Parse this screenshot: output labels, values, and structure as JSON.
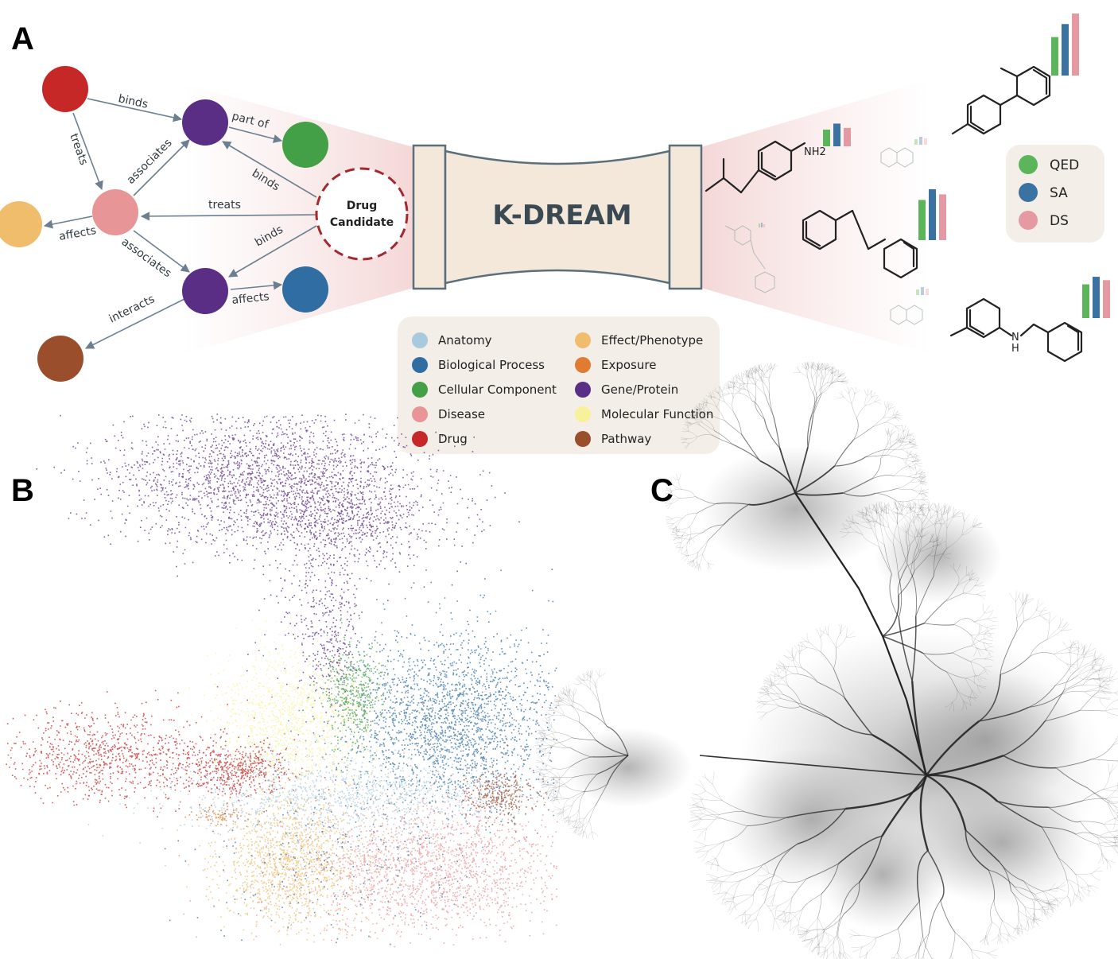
{
  "panels": {
    "a": "A",
    "b": "B",
    "c": "C"
  },
  "colors": {
    "anatomy": "#a9cade",
    "biological_process": "#2f6da3",
    "cellular_component": "#43a047",
    "disease": "#e89597",
    "drug": "#c62828",
    "effect_phenotype": "#efbd6c",
    "exposure": "#e07b31",
    "gene_protein": "#5b2e86",
    "molecular_function": "#f7f19a",
    "pathway": "#9b4e2c",
    "qed": "#5cb55a",
    "sa": "#3a73a1",
    "ds": "#e59aa3",
    "edge": "#6b7f90",
    "drug_ring": "#a3282f",
    "box_fill": "#f3e8da",
    "box_stroke": "#5b6e7c"
  },
  "graph": {
    "edge_labels": {
      "binds_top": "binds",
      "treats_left": "treats",
      "part_of": "part of",
      "associates_upper": "associates",
      "binds_drug_upper": "binds",
      "treats_drug": "treats",
      "affects_left": "affects",
      "associates_lower": "associates",
      "binds_drug_lower": "binds",
      "affects_right": "affects",
      "interacts": "interacts"
    },
    "drug_candidate": [
      "Drug",
      "Candidate"
    ]
  },
  "model_name": "K-DREAM",
  "node_legend": [
    {
      "label": "Anatomy",
      "color": "#a9cade"
    },
    {
      "label": "Biological Process",
      "color": "#2f6da3"
    },
    {
      "label": "Cellular Component",
      "color": "#43a047"
    },
    {
      "label": "Disease",
      "color": "#e89597"
    },
    {
      "label": "Drug",
      "color": "#c62828"
    },
    {
      "label": "Effect/Phenotype",
      "color": "#efbd6c"
    },
    {
      "label": "Exposure",
      "color": "#e07b31"
    },
    {
      "label": "Gene/Protein",
      "color": "#5b2e86"
    },
    {
      "label": "Molecular Function",
      "color": "#f7f19a"
    },
    {
      "label": "Pathway",
      "color": "#9b4e2c"
    }
  ],
  "score_legend": [
    {
      "label": "QED",
      "color": "#5cb55a"
    },
    {
      "label": "SA",
      "color": "#3a73a1"
    },
    {
      "label": "DS",
      "color": "#e59aa3"
    }
  ],
  "molecules": {
    "nh2": "NH2",
    "nh2_sub": "2",
    "nh": "N",
    "h": "H"
  },
  "score_bars": [
    {
      "molecule": "biphenyl",
      "qed": 0.62,
      "sa": 0.83,
      "ds": 1.0
    },
    {
      "molecule": "amine",
      "qed": 0.5,
      "sa": 0.68,
      "ds": 0.55
    },
    {
      "molecule": "bibenzyl",
      "qed": 0.79,
      "sa": 1.0,
      "ds": 0.9
    },
    {
      "molecule": "benzylaniline",
      "qed": 0.8,
      "sa": 0.98,
      "ds": 0.9
    }
  ]
}
